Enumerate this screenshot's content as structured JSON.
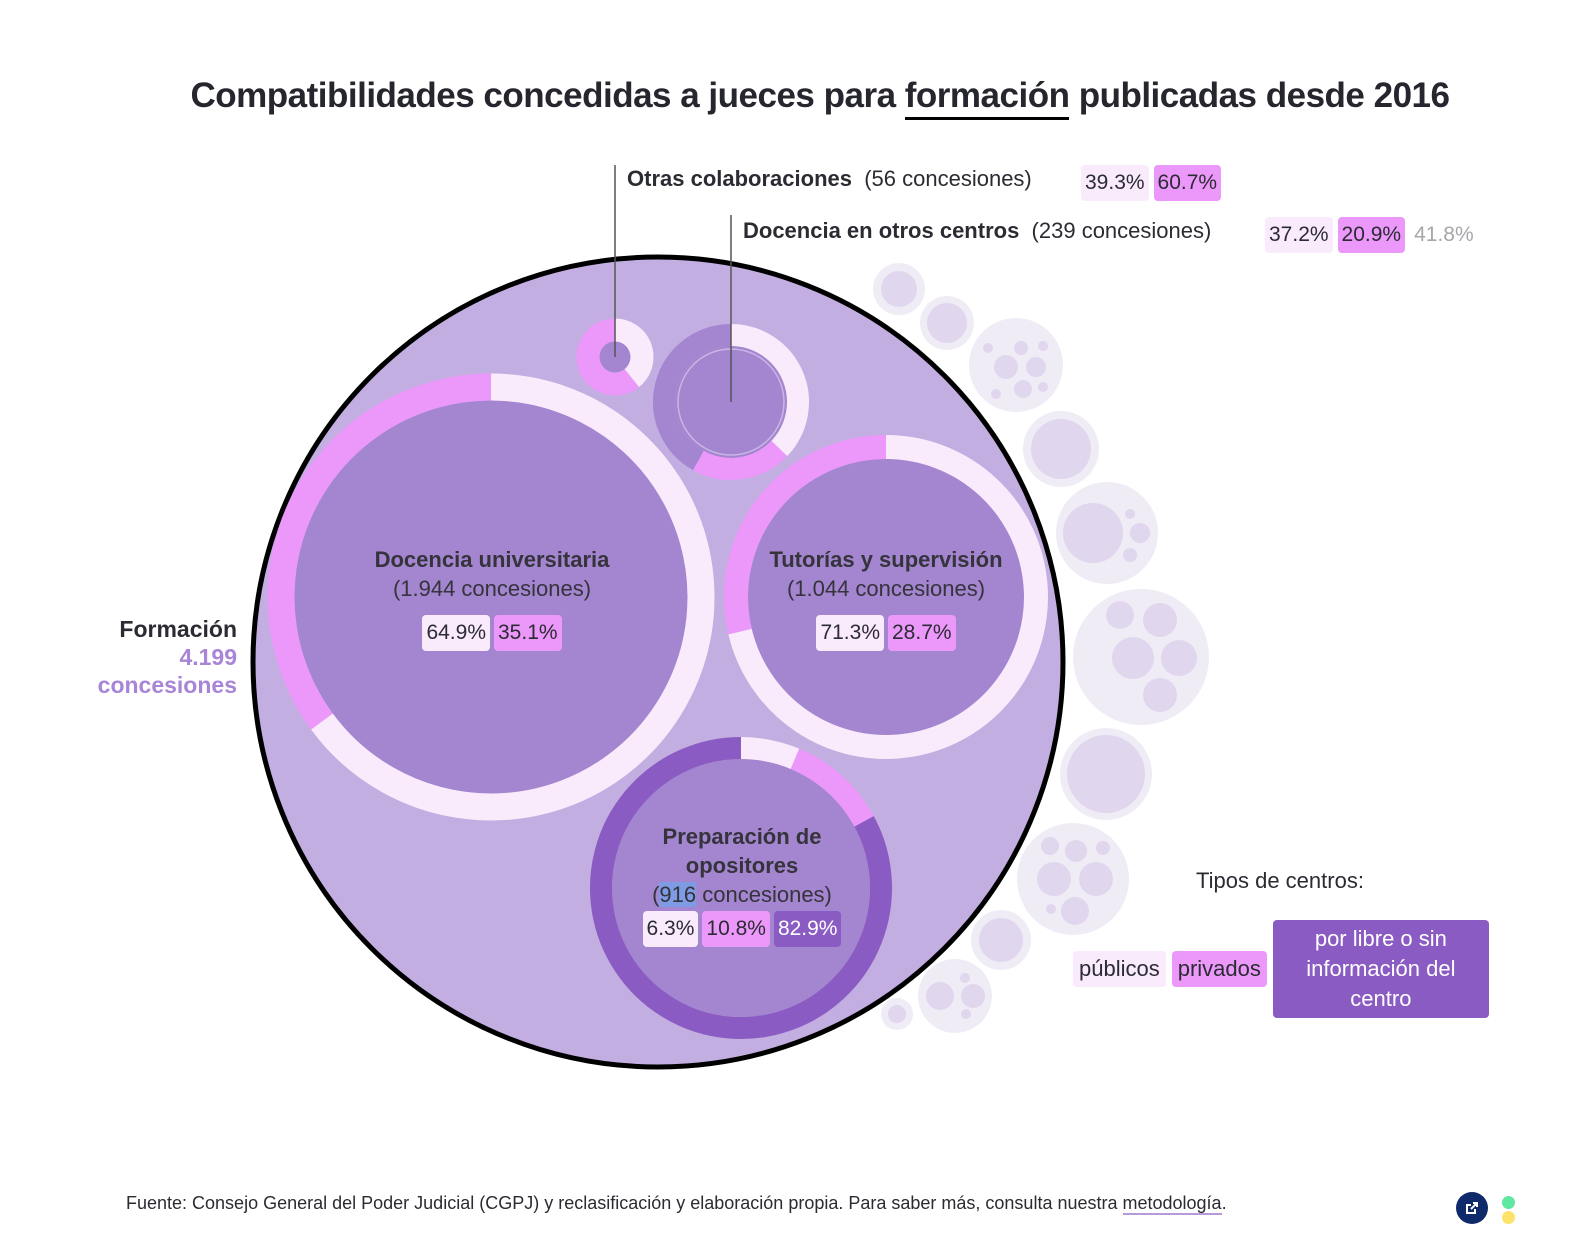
{
  "title": {
    "prefix": "Compatibilidades concedidas a jueces para ",
    "highlight": "formación",
    "suffix": " publicadas desde 2016"
  },
  "colors": {
    "publico": "#f9eafc",
    "privado": "#ec98fb",
    "libre": "#8a5bc2",
    "outer_fill": "#c2aee0",
    "inner_fill": "#a485cf",
    "ghost_outer": "#efecf6",
    "ghost_inner": "#e0d6ee"
  },
  "formacion": {
    "name": "Formación",
    "count": "4.199",
    "unit": "concesiones"
  },
  "chart_data": {
    "type": "nested-donut-bubble",
    "title": "Compatibilidades concedidas a jueces para formación publicadas desde 2016",
    "parent": {
      "name": "Formación",
      "total": 4199
    },
    "categories": [
      {
        "key": "docencia_universitaria",
        "name": "Docencia universitaria",
        "count": 1944,
        "count_label": "(1.944 concesiones)",
        "publicos": 64.9,
        "privados": 35.1,
        "libre": 0,
        "pills": [
          "64.9%",
          "35.1%"
        ]
      },
      {
        "key": "tutorias",
        "name": "Tutorías y supervisión",
        "count": 1044,
        "count_label": "(1.044 concesiones)",
        "publicos": 71.3,
        "privados": 28.7,
        "libre": 0,
        "pills": [
          "71.3%",
          "28.7%"
        ]
      },
      {
        "key": "preparacion",
        "name": "Preparación de opositores",
        "name_lines": [
          "Preparación de",
          "opositores"
        ],
        "count": 916,
        "count_label_pre": "(",
        "count_label_num": "916",
        "count_label_post": " concesiones)",
        "publicos": 6.3,
        "privados": 10.8,
        "libre": 82.9,
        "pills": [
          "6.3%",
          "10.8%",
          "82.9%"
        ]
      },
      {
        "key": "docencia_otros",
        "name": "Docencia en otros centros",
        "count": 239,
        "count_label": "(239 concesiones)",
        "publicos": 37.2,
        "privados": 20.9,
        "libre": 0,
        "sin_info": 41.8,
        "pills": [
          "37.2%",
          "20.9%",
          "41.8%"
        ]
      },
      {
        "key": "otras",
        "name": "Otras colaboraciones",
        "count": 56,
        "count_label": "(56 concesiones)",
        "publicos": 39.3,
        "privados": 60.7,
        "libre": 0,
        "pills": [
          "39.3%",
          "60.7%"
        ]
      }
    ],
    "legend": {
      "title": "Tipos de centros:",
      "items": [
        {
          "key": "publicos",
          "label": "públicos"
        },
        {
          "key": "privados",
          "label": "privados"
        },
        {
          "key": "libre",
          "label": "por libre o sin información del centro"
        }
      ]
    }
  },
  "legend_libre_lines": [
    "por libre o sin",
    "información del",
    "centro"
  ],
  "footer": {
    "text": "Fuente: Consejo General del Poder Judicial (CGPJ) y reclasificación y elaboración propia. Para saber más, consulta nuestra ",
    "link": "metodología",
    "end": "."
  }
}
